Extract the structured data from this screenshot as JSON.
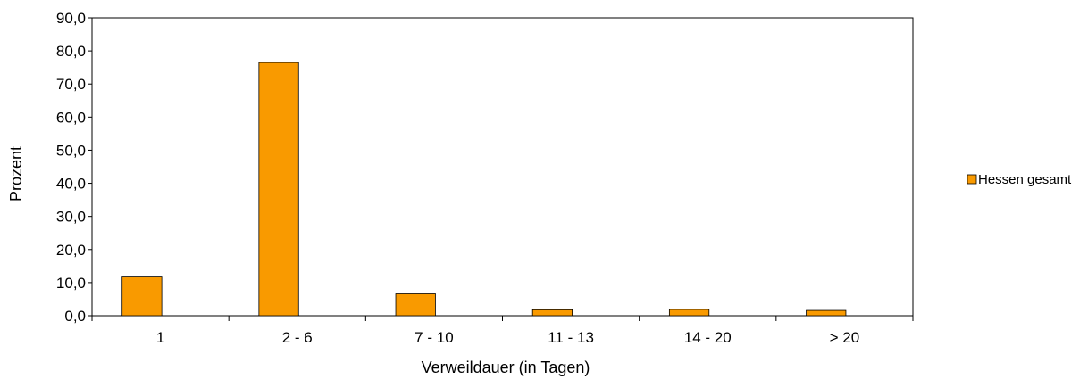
{
  "chart_data": {
    "type": "bar",
    "categories": [
      "1",
      "2 - 6",
      "7 - 10",
      "11 - 13",
      "14 - 20",
      "> 20"
    ],
    "series": [
      {
        "name": "Hessen gesamt",
        "values": [
          11.7,
          76.5,
          6.6,
          1.8,
          1.9,
          1.6
        ],
        "color": "#F99A00"
      }
    ],
    "ytick_labels": [
      "0,0",
      "10,0",
      "20,0",
      "30,0",
      "40,0",
      "50,0",
      "60,0",
      "70,0",
      "80,0",
      "90,0"
    ],
    "ylim": [
      0,
      90
    ],
    "ytick_step": 10,
    "xlabel": "Verweildauer (in Tagen)",
    "ylabel": "Prozent",
    "grid": false,
    "legend_position": "right"
  }
}
